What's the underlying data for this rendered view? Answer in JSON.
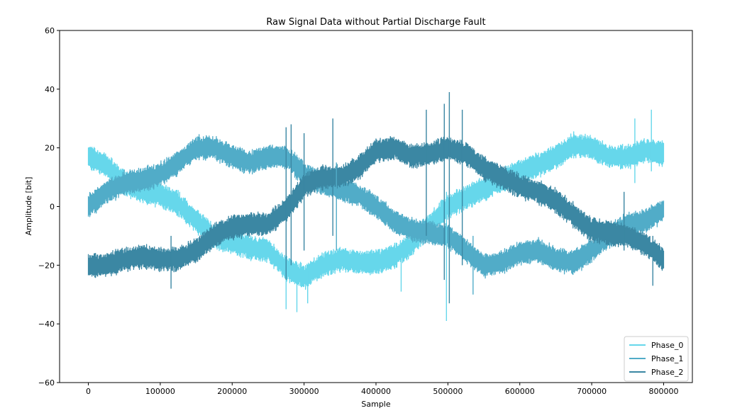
{
  "chart_data": {
    "type": "line",
    "title": "Raw Signal Data without Partial Discharge Fault",
    "xlabel": "Sample",
    "ylabel": "Amplitude [bit]",
    "xlim": [
      -40000,
      840000
    ],
    "ylim": [
      -60,
      60
    ],
    "xticks": [
      0,
      100000,
      200000,
      300000,
      400000,
      500000,
      600000,
      700000,
      800000
    ],
    "xtick_labels": [
      "0",
      "100000",
      "200000",
      "300000",
      "400000",
      "500000",
      "600000",
      "700000",
      "800000"
    ],
    "yticks": [
      -60,
      -40,
      -20,
      0,
      20,
      40,
      60
    ],
    "ytick_labels": [
      "−60",
      "−40",
      "−20",
      "0",
      "20",
      "40",
      "60"
    ],
    "grid": false,
    "legend_position": "bottom-right",
    "series": [
      {
        "name": "Phase_0",
        "color": "#66d7eb",
        "x": [
          0,
          25000,
          50000,
          75000,
          100000,
          125000,
          150000,
          175000,
          200000,
          225000,
          250000,
          275000,
          300000,
          325000,
          350000,
          375000,
          400000,
          425000,
          450000,
          475000,
          500000,
          525000,
          550000,
          575000,
          600000,
          625000,
          650000,
          675000,
          700000,
          725000,
          750000,
          775000,
          800000
        ],
        "values": [
          17,
          14,
          8,
          5,
          4,
          1,
          -5,
          -10,
          -12,
          -14,
          -15,
          -21,
          -24,
          -20,
          -18,
          -19,
          -19,
          -17,
          -13,
          -6,
          0,
          3,
          6,
          9,
          12,
          14,
          17,
          21,
          20,
          17,
          17,
          19,
          18
        ]
      },
      {
        "name": "Phase_1",
        "color": "#51acc8",
        "x": [
          0,
          25000,
          50000,
          75000,
          100000,
          125000,
          150000,
          175000,
          200000,
          225000,
          250000,
          275000,
          300000,
          325000,
          350000,
          375000,
          400000,
          425000,
          450000,
          475000,
          500000,
          525000,
          550000,
          575000,
          600000,
          625000,
          650000,
          675000,
          700000,
          725000,
          750000,
          775000,
          800000
        ],
        "values": [
          0,
          5,
          8,
          9,
          11,
          15,
          20,
          20,
          17,
          15,
          17,
          17,
          11,
          8,
          6,
          4,
          0,
          -5,
          -8,
          -9,
          -10,
          -15,
          -20,
          -19,
          -16,
          -15,
          -18,
          -19,
          -15,
          -10,
          -6,
          -5,
          -1
        ]
      },
      {
        "name": "Phase_2",
        "color": "#3b87a3",
        "x": [
          0,
          25000,
          50000,
          75000,
          100000,
          125000,
          150000,
          175000,
          200000,
          225000,
          250000,
          275000,
          300000,
          325000,
          350000,
          375000,
          400000,
          425000,
          450000,
          475000,
          500000,
          525000,
          550000,
          575000,
          600000,
          625000,
          650000,
          675000,
          700000,
          725000,
          750000,
          775000,
          800000
        ],
        "values": [
          -20,
          -20,
          -18,
          -17,
          -18,
          -18,
          -15,
          -10,
          -7,
          -6,
          -6,
          -1,
          7,
          10,
          10,
          13,
          19,
          20,
          17,
          18,
          20,
          18,
          13,
          10,
          7,
          5,
          2,
          -3,
          -8,
          -9,
          -10,
          -13,
          -18
        ]
      }
    ],
    "spikes": [
      {
        "series": 0,
        "x": 275000,
        "low": -35,
        "high": -25
      },
      {
        "series": 0,
        "x": 290000,
        "low": -36,
        "high": -25
      },
      {
        "series": 0,
        "x": 305000,
        "low": -33,
        "high": -22
      },
      {
        "series": 0,
        "x": 435000,
        "low": -29,
        "high": -15
      },
      {
        "series": 0,
        "x": 498000,
        "low": -39,
        "high": 5
      },
      {
        "series": 0,
        "x": 760000,
        "low": 8,
        "high": 30
      },
      {
        "series": 0,
        "x": 783000,
        "low": 12,
        "high": 33
      },
      {
        "series": 1,
        "x": 345000,
        "low": -15,
        "high": 15
      },
      {
        "series": 1,
        "x": 535000,
        "low": -30,
        "high": -10
      },
      {
        "series": 2,
        "x": 115000,
        "low": -28,
        "high": -10
      },
      {
        "series": 2,
        "x": 275000,
        "low": -25,
        "high": 27
      },
      {
        "series": 2,
        "x": 282000,
        "low": -20,
        "high": 28
      },
      {
        "series": 2,
        "x": 300000,
        "low": -15,
        "high": 25
      },
      {
        "series": 2,
        "x": 340000,
        "low": -10,
        "high": 30
      },
      {
        "series": 2,
        "x": 470000,
        "low": -10,
        "high": 33
      },
      {
        "series": 2,
        "x": 495000,
        "low": -25,
        "high": 35
      },
      {
        "series": 2,
        "x": 502000,
        "low": -33,
        "high": 39
      },
      {
        "series": 2,
        "x": 520000,
        "low": -20,
        "high": 33
      },
      {
        "series": 2,
        "x": 745000,
        "low": -15,
        "high": 5
      },
      {
        "series": 2,
        "x": 785000,
        "low": -27,
        "high": -10
      }
    ]
  }
}
